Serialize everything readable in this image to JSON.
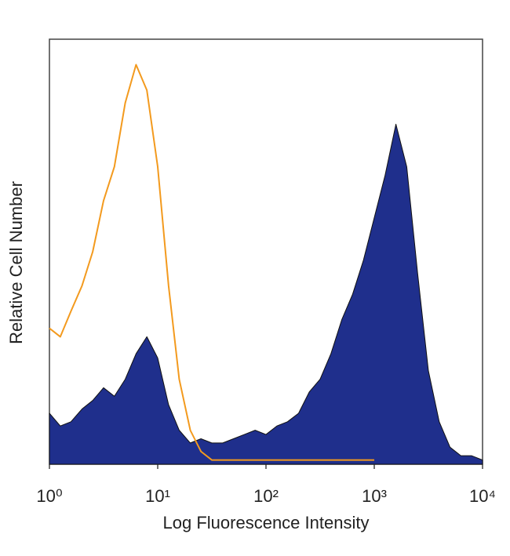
{
  "chart_data": {
    "type": "area",
    "xlabel": "Log Fluorescence Intensity",
    "ylabel": "Relative Cell Number",
    "xscale": "log",
    "xlim": [
      1,
      10000
    ],
    "ylim": [
      0,
      100
    ],
    "xticks": [
      {
        "value": 1,
        "label": "10⁰"
      },
      {
        "value": 10,
        "label": "10¹"
      },
      {
        "value": 100,
        "label": "10²"
      },
      {
        "value": 1000,
        "label": "10³"
      },
      {
        "value": 10000,
        "label": "10⁴"
      }
    ],
    "x": [
      1,
      1.26,
      1.58,
      2,
      2.51,
      3.16,
      3.98,
      5.01,
      6.31,
      7.94,
      10,
      12.6,
      15.8,
      20,
      25.1,
      31.6,
      39.8,
      50.1,
      63.1,
      79.4,
      100,
      126,
      158,
      200,
      251,
      316,
      398,
      501,
      631,
      794,
      1000,
      1259,
      1585,
      1995,
      2512,
      3162,
      3981,
      5012,
      6310,
      7943,
      10000
    ],
    "series": [
      {
        "color": "#1f2f8c",
        "filled": true,
        "values": [
          12,
          9,
          10,
          13,
          15,
          18,
          16,
          20,
          26,
          30,
          25,
          14,
          8,
          5,
          6,
          5,
          5,
          6,
          7,
          8,
          7,
          9,
          10,
          12,
          17,
          20,
          26,
          34,
          40,
          48,
          58,
          68,
          80,
          70,
          45,
          22,
          10,
          4,
          2,
          2,
          1
        ]
      },
      {
        "color": "#f39a1e",
        "filled": false,
        "values": [
          32,
          30,
          36,
          42,
          50,
          62,
          70,
          85,
          94,
          88,
          70,
          42,
          20,
          8,
          3,
          1,
          1,
          1,
          1,
          1,
          1,
          1,
          1,
          1,
          1,
          1,
          1,
          1,
          1,
          1,
          1,
          null,
          null,
          null,
          null,
          null,
          null,
          null,
          null,
          null,
          null
        ]
      }
    ]
  }
}
